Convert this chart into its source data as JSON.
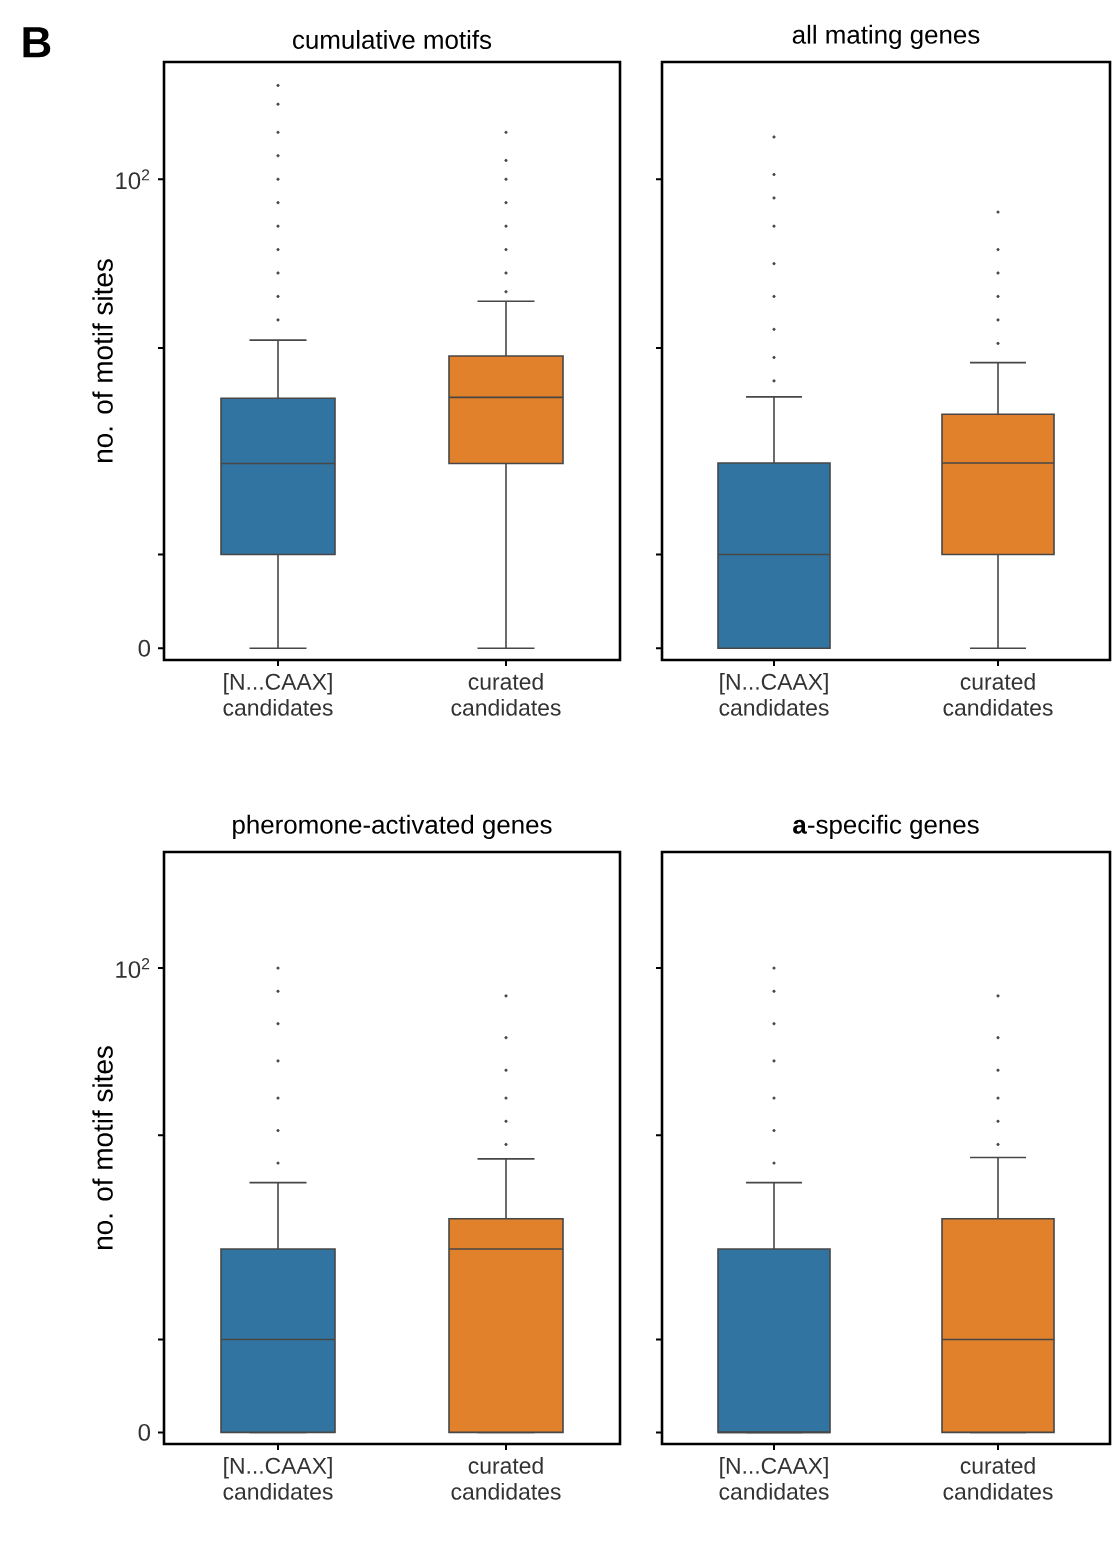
{
  "chart_data": [
    {
      "type": "box",
      "title": "cumulative motifs",
      "ylabel": "no. of motif sites",
      "annotations": [
        "B"
      ],
      "categories": [
        "[N...CAAX] candidates",
        "curated candidates"
      ],
      "colors": [
        "#3274a1",
        "#e1812c"
      ],
      "ylim": [
        -2.5,
        125
      ],
      "yticks": [
        0,
        {
          "value": 20,
          "label": null
        },
        {
          "value": 64,
          "label": null
        },
        {
          "value": 100,
          "label": "10$^{2}$"
        }
      ],
      "boxes": [
        {
          "low": 0,
          "q1": 20,
          "median": 39.4,
          "q3": 53.3,
          "high": 65.7,
          "outliers": [
            70,
            75,
            80,
            85,
            90,
            95,
            100,
            105,
            110,
            116,
            120
          ]
        },
        {
          "low": 0,
          "q1": 39.4,
          "median": 53.5,
          "q3": 62.3,
          "high": 74,
          "outliers": [
            76,
            80,
            85,
            90,
            95,
            100,
            104,
            110
          ]
        }
      ]
    },
    {
      "type": "box",
      "title": "all mating genes",
      "tick_labels": "x",
      "categories": [
        "[N...CAAX] candidates",
        "curated candidates"
      ],
      "colors": [
        "#3274a1",
        "#e1812c"
      ],
      "ylim": [
        -2.5,
        125
      ],
      "yticks": [
        0,
        {
          "value": 20,
          "label": null
        },
        {
          "value": 64,
          "label": null
        },
        {
          "value": 100,
          "label": null
        }
      ],
      "boxes": [
        {
          "low": 0,
          "q1": 0,
          "median": 20,
          "q3": 39.5,
          "high": 53.6,
          "outliers": [
            57,
            62,
            68,
            75,
            82,
            90,
            96,
            101,
            109
          ]
        },
        {
          "low": 0,
          "q1": 20,
          "median": 39.5,
          "q3": 49.9,
          "high": 60.9,
          "outliers": [
            65,
            70,
            75,
            80,
            85,
            93
          ]
        }
      ]
    },
    {
      "type": "box",
      "title": "pheromone-activated genes",
      "ylabel": "no. of motif sites",
      "categories": [
        "[N...CAAX] candidates",
        "curated candidates"
      ],
      "colors": [
        "#3274a1",
        "#e1812c"
      ],
      "ylim": [
        -2.5,
        125
      ],
      "yticks": [
        0,
        {
          "value": 20,
          "label": null
        },
        {
          "value": 64,
          "label": null
        },
        {
          "value": 100,
          "label": "10$^{2}$"
        }
      ],
      "boxes": [
        {
          "low": 0,
          "q1": 0,
          "median": 20,
          "q3": 39.5,
          "high": 53.8,
          "outliers": [
            58,
            65,
            72,
            80,
            88,
            95,
            100
          ]
        },
        {
          "low": 0,
          "q1": 0,
          "median": 39.5,
          "q3": 46,
          "high": 58.9,
          "outliers": [
            62,
            67,
            72,
            78,
            85,
            94
          ]
        }
      ]
    },
    {
      "type": "box",
      "title": "**a**-specific genes",
      "tick_labels": "x",
      "categories": [
        "[N...CAAX] candidates",
        "curated candidates"
      ],
      "colors": [
        "#3274a1",
        "#e1812c"
      ],
      "ylim": [
        -2.5,
        125
      ],
      "yticks": [
        0,
        {
          "value": 20,
          "label": null
        },
        {
          "value": 64,
          "label": null
        },
        {
          "value": 100,
          "label": null
        }
      ],
      "boxes": [
        {
          "low": 0,
          "q1": 0,
          "median": 0,
          "q3": 39.5,
          "high": 53.8,
          "outliers": [
            58,
            65,
            72,
            80,
            88,
            95,
            100
          ]
        },
        {
          "low": 0,
          "q1": 0,
          "median": 20,
          "q3": 46,
          "high": 59.2,
          "outliers": [
            62,
            67,
            72,
            78,
            85,
            94
          ]
        }
      ]
    }
  ]
}
